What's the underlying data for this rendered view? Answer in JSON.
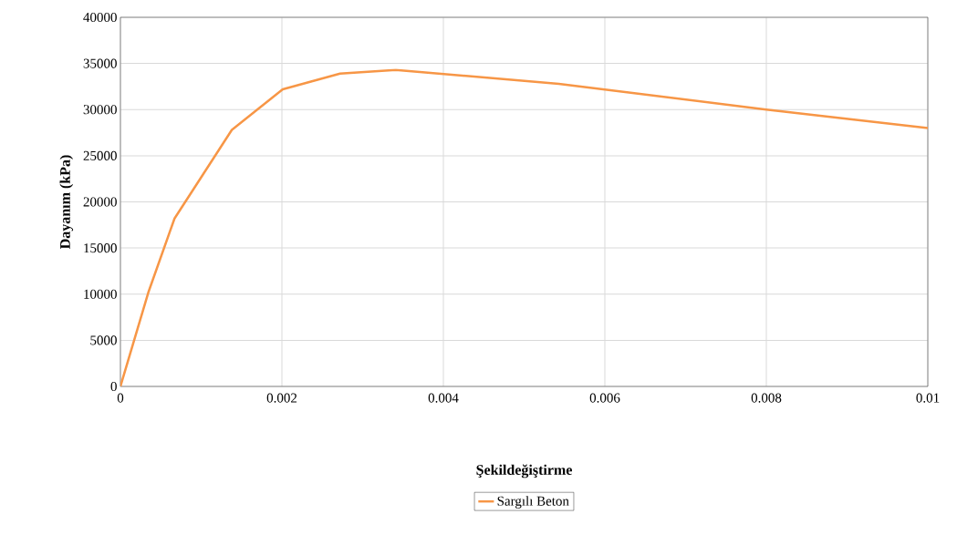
{
  "chart_data": {
    "type": "line",
    "xlabel": "**Şekildeğiştirme**",
    "ylabel": "**Dayanım (kPa)**",
    "x": [
      0,
      0.00035,
      0.00067,
      0.00138,
      0.00201,
      0.00272,
      0.00341,
      0.00543,
      0.008,
      0.01
    ],
    "series": [
      {
        "name": "Sargılı Beton",
        "color": "#f79646",
        "values": [
          0,
          10300,
          18200,
          27800,
          32200,
          33900,
          34300,
          32800,
          30000,
          28000
        ]
      }
    ],
    "xlim": [
      0,
      0.01
    ],
    "xticks": [
      0,
      0.002,
      0.004,
      0.006,
      0.008,
      0.01
    ],
    "ylim": [
      0,
      40000
    ],
    "yticks": [
      0,
      5000,
      10000,
      15000,
      20000,
      25000,
      30000,
      35000,
      40000
    ],
    "grid": true,
    "legend": "bottom",
    "marker": "none",
    "line_style": "solid"
  }
}
